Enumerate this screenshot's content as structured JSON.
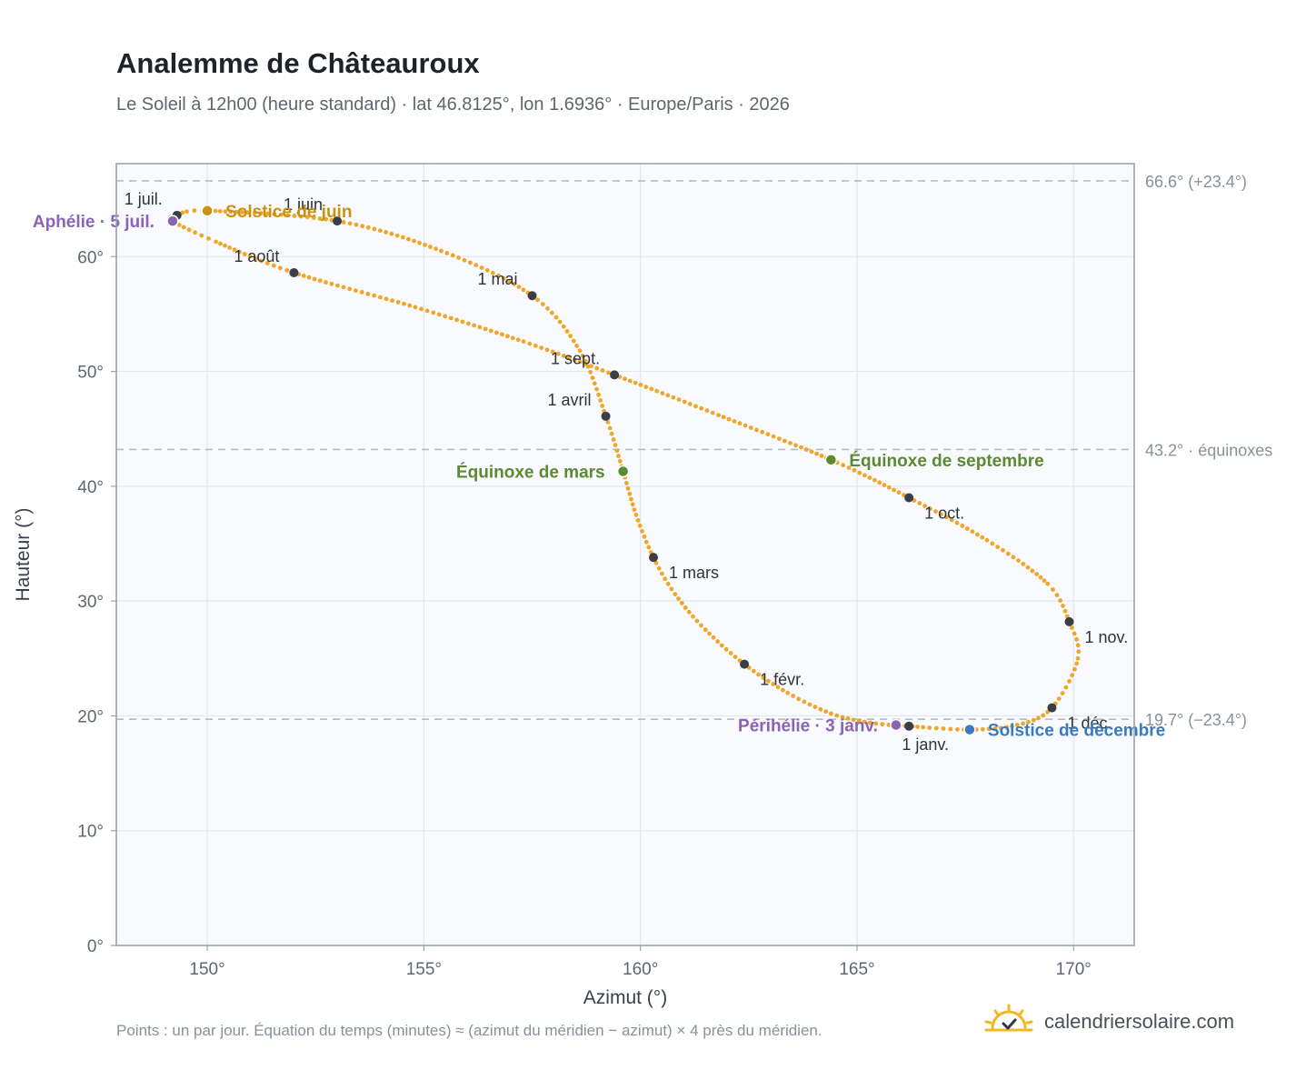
{
  "header": {
    "title": "Analemme de Châteauroux",
    "subtitle": "Le Soleil à 12h00 (heure standard) · lat 46.8125°, lon 1.6936° · Europe/Paris · 2026"
  },
  "footer": {
    "note": "Points : un par jour. Équation du temps (minutes) ≈ (azimut du méridien − azimut) × 4 près du méridien.",
    "brand": "calendriersolaire.com",
    "brand_icon": "sun-icon"
  },
  "colors": {
    "curve": "#f0a62b",
    "month": "#3a3f47",
    "equinox": "#5b8a31",
    "june_solstice": "#c89212",
    "december_solstice": "#3b7abf",
    "apsis": "#8a63b5",
    "plot_bg": "#f8fafd",
    "grid": "#e2e7ee",
    "refline": "#b4bcc6"
  },
  "chart_data": {
    "type": "scatter",
    "xlabel": "Azimut (°)",
    "ylabel": "Hauteur (°)",
    "xlim": [
      147.9,
      171.4
    ],
    "ylim": [
      0,
      68.1
    ],
    "xticks": [
      150,
      155,
      160,
      165,
      170
    ],
    "yticks": [
      0,
      10,
      20,
      30,
      40,
      50,
      60
    ],
    "tick_suffix": "°",
    "grid": true,
    "reference_lines": [
      {
        "y": 66.6,
        "label": "66.6° (+23.4°)"
      },
      {
        "y": 43.2,
        "label": "43.2° · équinoxes"
      },
      {
        "y": 19.7,
        "label": "19.7° (−23.4°)"
      }
    ],
    "months": [
      {
        "label": "1 janv.",
        "az": 166.2,
        "alt": 19.1,
        "anchor": "below"
      },
      {
        "label": "1 févr.",
        "az": 162.4,
        "alt": 24.5,
        "anchor": "below-right"
      },
      {
        "label": "1 mars",
        "az": 160.3,
        "alt": 33.8,
        "anchor": "below-right"
      },
      {
        "label": "1 avril",
        "az": 159.2,
        "alt": 46.1,
        "anchor": "above-left"
      },
      {
        "label": "1 mai",
        "az": 157.5,
        "alt": 56.6,
        "anchor": "above-left"
      },
      {
        "label": "1 juin",
        "az": 153.0,
        "alt": 63.1,
        "anchor": "above-left"
      },
      {
        "label": "1 juil.",
        "az": 149.3,
        "alt": 63.6,
        "anchor": "above-left"
      },
      {
        "label": "1 août",
        "az": 152.0,
        "alt": 58.6,
        "anchor": "above-left"
      },
      {
        "label": "1 sept.",
        "az": 159.4,
        "alt": 49.7,
        "anchor": "above-left"
      },
      {
        "label": "1 oct.",
        "az": 166.2,
        "alt": 39.0,
        "anchor": "below-right"
      },
      {
        "label": "1 nov.",
        "az": 169.9,
        "alt": 28.2,
        "anchor": "below-right"
      },
      {
        "label": "1 déc.",
        "az": 169.5,
        "alt": 20.7,
        "anchor": "below-right"
      }
    ],
    "events": [
      {
        "label": "Équinoxe de mars",
        "az": 159.6,
        "alt": 41.3,
        "kind": "equinox",
        "anchor": "left"
      },
      {
        "label": "Équinoxe de septembre",
        "az": 164.4,
        "alt": 42.3,
        "kind": "equinox",
        "anchor": "right"
      },
      {
        "label": "Solstice de juin",
        "az": 150.0,
        "alt": 64.0,
        "kind": "june_solstice",
        "anchor": "right"
      },
      {
        "label": "Solstice de décembre",
        "az": 167.6,
        "alt": 18.8,
        "kind": "december_solstice",
        "anchor": "right"
      },
      {
        "label": "Aphélie · 5 juil.",
        "az": 149.2,
        "alt": 63.1,
        "kind": "apsis",
        "anchor": "left"
      },
      {
        "label": "Périhélie · 3 janv.",
        "az": 165.9,
        "alt": 19.2,
        "kind": "apsis",
        "anchor": "left"
      }
    ],
    "curve_control_points": [
      {
        "az": 166.2,
        "alt": 19.1
      },
      {
        "az": 165.3,
        "alt": 19.4
      },
      {
        "az": 164.4,
        "alt": 20.2
      },
      {
        "az": 163.4,
        "alt": 22.0
      },
      {
        "az": 162.4,
        "alt": 24.5
      },
      {
        "az": 161.5,
        "alt": 27.5
      },
      {
        "az": 160.8,
        "alt": 30.6
      },
      {
        "az": 160.3,
        "alt": 33.8
      },
      {
        "az": 159.9,
        "alt": 37.5
      },
      {
        "az": 159.6,
        "alt": 41.3
      },
      {
        "az": 159.2,
        "alt": 46.1
      },
      {
        "az": 158.6,
        "alt": 51.8
      },
      {
        "az": 157.5,
        "alt": 56.6
      },
      {
        "az": 155.4,
        "alt": 60.5
      },
      {
        "az": 153.0,
        "alt": 63.1
      },
      {
        "az": 150.0,
        "alt": 64.0
      },
      {
        "az": 149.3,
        "alt": 63.6
      },
      {
        "az": 149.2,
        "alt": 63.1
      },
      {
        "az": 150.2,
        "alt": 61.3
      },
      {
        "az": 152.0,
        "alt": 58.6
      },
      {
        "az": 154.8,
        "alt": 55.6
      },
      {
        "az": 157.3,
        "alt": 52.6
      },
      {
        "az": 159.4,
        "alt": 49.7
      },
      {
        "az": 161.8,
        "alt": 46.2
      },
      {
        "az": 164.4,
        "alt": 42.3
      },
      {
        "az": 166.2,
        "alt": 39.0
      },
      {
        "az": 168.0,
        "alt": 35.3
      },
      {
        "az": 169.4,
        "alt": 31.5
      },
      {
        "az": 169.9,
        "alt": 28.2
      },
      {
        "az": 170.1,
        "alt": 25.0
      },
      {
        "az": 169.5,
        "alt": 20.7
      },
      {
        "az": 168.7,
        "alt": 19.2
      },
      {
        "az": 167.6,
        "alt": 18.8
      },
      {
        "az": 166.2,
        "alt": 19.1
      }
    ]
  }
}
